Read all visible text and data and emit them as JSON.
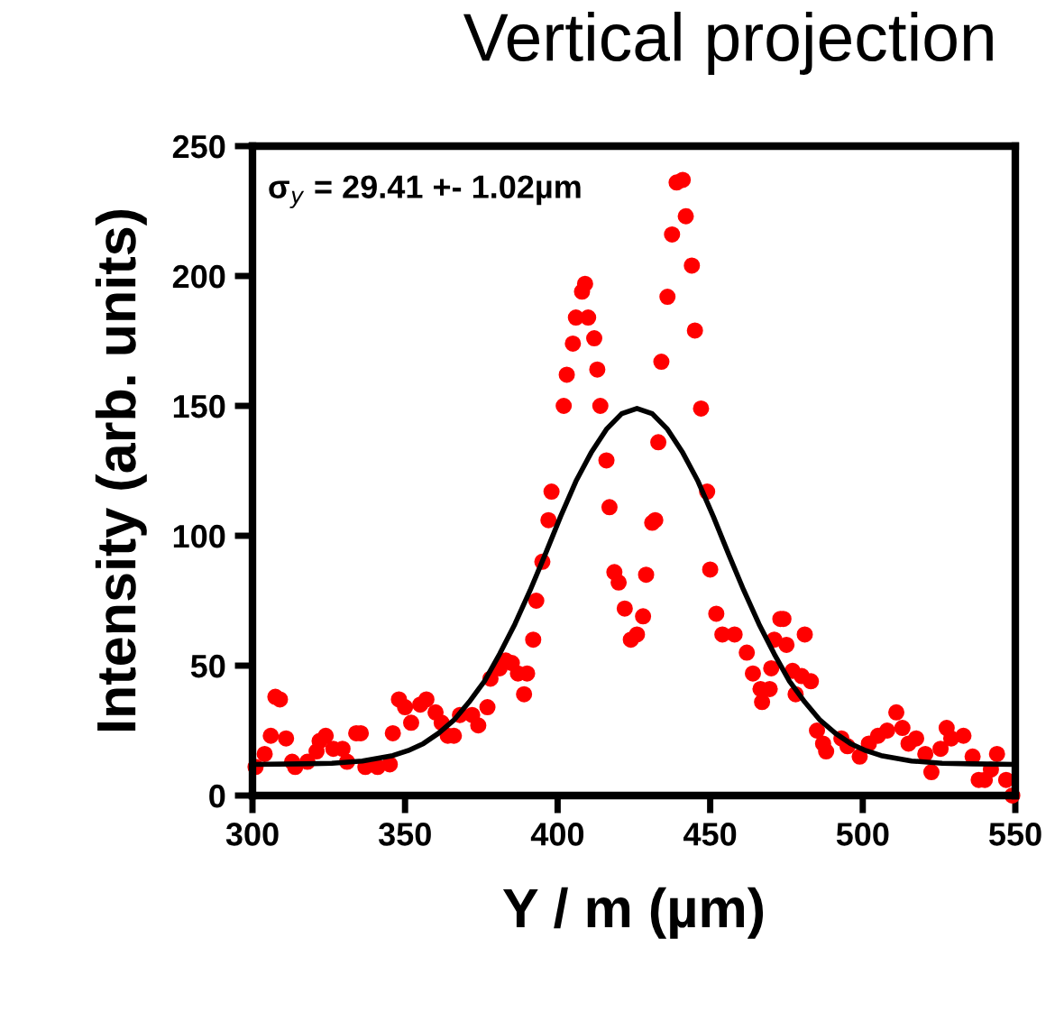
{
  "chart_data": {
    "type": "scatter",
    "title": "Vertical projection",
    "xlabel": "Y / m (µm)",
    "ylabel": "Intensity (arb. units)",
    "annotations": [
      "σ$_{y}$ = 29.41 +- 1.02µm"
    ],
    "xlim": [
      300,
      550
    ],
    "ylim": [
      0,
      250
    ],
    "xticks": [
      300,
      350,
      400,
      450,
      500,
      550
    ],
    "yticks": [
      0,
      50,
      100,
      150,
      200,
      250
    ],
    "grid": false,
    "legend": false,
    "marker": "circle",
    "series": [
      {
        "color": "#ff0000",
        "x": [
          301,
          304,
          306,
          307.5,
          309,
          311,
          313,
          314,
          318,
          321,
          322,
          324,
          326.5,
          329.5,
          331,
          334,
          335.5,
          337,
          341,
          345,
          346,
          348,
          350,
          352,
          355,
          357,
          360,
          362,
          364,
          366,
          368,
          372,
          374,
          377,
          378,
          381,
          383,
          385,
          387,
          389,
          390,
          392,
          393,
          395,
          397,
          398,
          402,
          403,
          405,
          406,
          408,
          409,
          410,
          412,
          413,
          414,
          416,
          417,
          418.6,
          420,
          422,
          424,
          426,
          428,
          429,
          431,
          432,
          433,
          434,
          436,
          437.5,
          439,
          441,
          442,
          444,
          445,
          447,
          449,
          450,
          452,
          454,
          458,
          462,
          464,
          466.5,
          467,
          469.5,
          470,
          471,
          473,
          474,
          475,
          477,
          478,
          480,
          481,
          483,
          485,
          487,
          488,
          493,
          495,
          499,
          502,
          505,
          508,
          511,
          513,
          515,
          517.5,
          520.5,
          522.5,
          525.5,
          527.5,
          529,
          533,
          536,
          538,
          540,
          542,
          544,
          547,
          549
        ],
        "values": [
          11,
          16,
          23,
          38,
          37,
          22,
          13,
          11,
          13,
          17,
          21,
          23,
          18,
          18,
          13,
          24,
          24,
          11,
          11,
          12,
          24,
          37,
          34,
          28,
          35,
          37,
          32,
          28,
          23,
          23,
          31,
          31,
          27,
          34,
          45,
          49,
          52,
          51,
          47,
          39,
          47,
          60,
          75,
          90,
          106,
          117,
          150,
          162,
          174,
          184,
          194,
          197,
          184,
          176,
          164,
          150,
          129,
          111,
          86,
          82,
          72,
          60,
          62,
          69,
          85,
          105,
          106,
          136,
          167,
          192,
          216,
          236,
          237,
          223,
          204,
          179,
          149,
          117,
          87,
          70,
          62,
          62,
          55,
          47,
          41,
          36,
          41,
          49,
          60,
          68,
          68,
          58,
          48,
          39,
          46,
          62,
          44,
          25,
          20,
          17,
          22,
          19,
          15,
          20,
          23,
          25,
          32,
          26,
          20,
          22,
          16,
          9,
          18,
          26,
          22,
          23,
          15,
          6,
          6,
          10,
          16,
          6,
          0
        ]
      },
      {
        "type": "line",
        "color": "#000000",
        "marker": "none",
        "x": [
          300,
          316,
          326,
          336,
          346,
          351,
          356,
          361,
          366,
          371,
          376,
          381,
          386,
          391,
          396,
          401,
          406,
          411,
          416,
          421,
          426,
          431,
          436,
          441,
          446,
          451,
          456,
          461,
          466,
          471,
          476,
          481,
          486,
          491,
          496,
          501,
          506,
          516,
          526,
          536,
          550
        ],
        "values": [
          12,
          12.2,
          12.4,
          13.3,
          15.4,
          17.3,
          20,
          24,
          29,
          36,
          44,
          54.5,
          66,
          79,
          93,
          107.5,
          121,
          132,
          141,
          147,
          149,
          147,
          141,
          132,
          121,
          107.5,
          93,
          79,
          66,
          54.5,
          44,
          36,
          29,
          24,
          20,
          17.3,
          15.4,
          13.3,
          12.4,
          12.2,
          12
        ]
      }
    ]
  }
}
